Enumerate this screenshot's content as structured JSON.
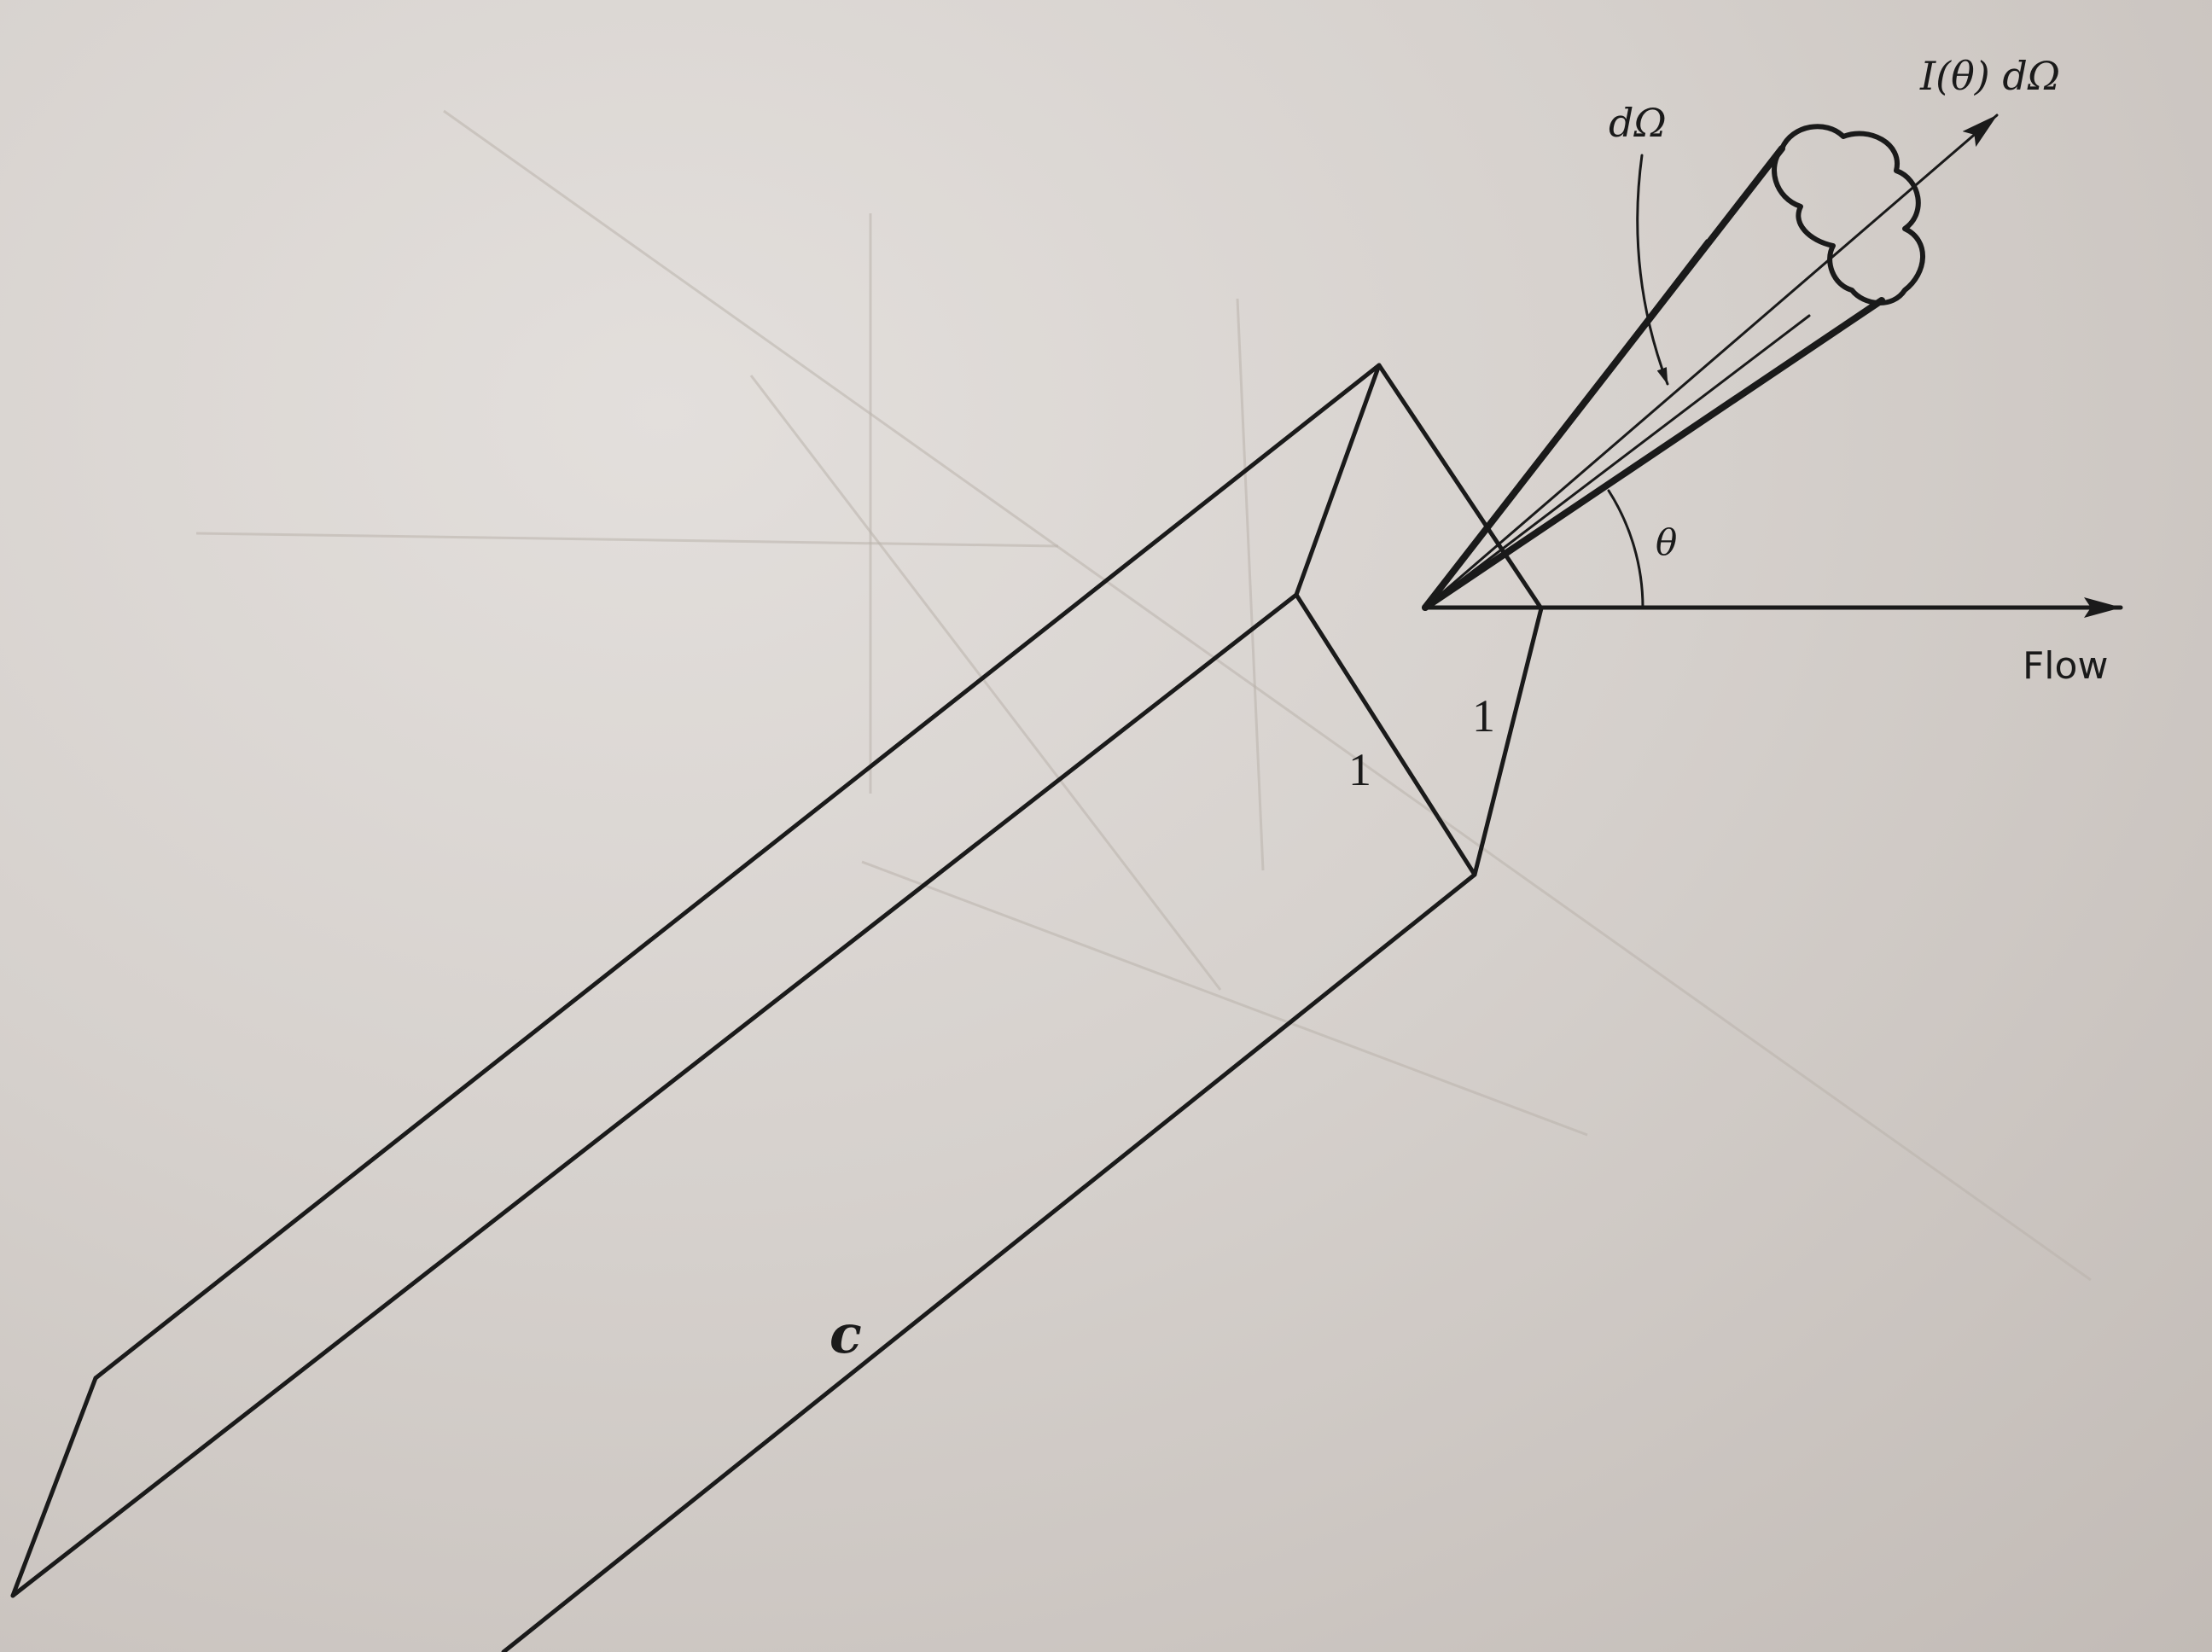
{
  "labels": {
    "intensity": "I(θ) dΩ",
    "solid_angle": "dΩ",
    "angle": "θ",
    "flow": "Flow",
    "side_a": "1",
    "side_b": "1",
    "length": "c"
  }
}
